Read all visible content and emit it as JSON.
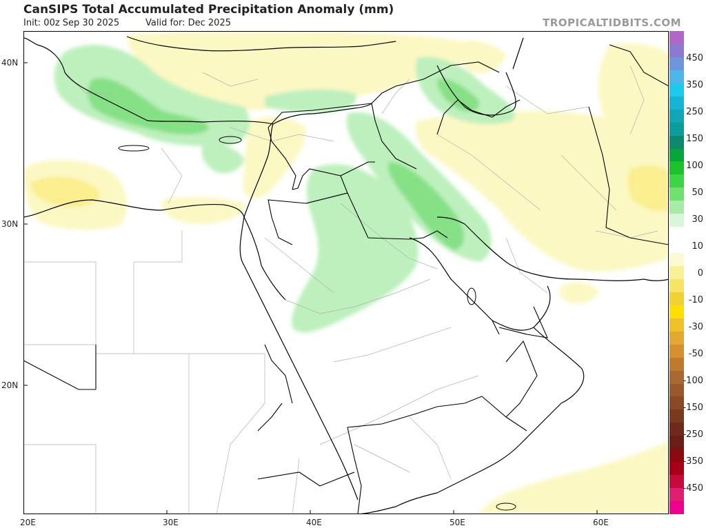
{
  "header": {
    "title": "CanSIPS Total Accumulated Precipitation Anomaly (mm)",
    "init": "Init: 00z Sep 30 2025",
    "valid": "Valid for: Dec 2025",
    "watermark": "TROPICALTIDBITS.COM"
  },
  "axes": {
    "lat_labels": [
      "40N",
      "30N",
      "20N"
    ],
    "lon_labels": [
      "20E",
      "30E",
      "40E",
      "50E",
      "60E"
    ]
  },
  "legend": {
    "labels": [
      "450",
      "350",
      "250",
      "150",
      "100",
      "50",
      "30",
      "10",
      "0",
      "-10",
      "-30",
      "-50",
      "-100",
      "-150",
      "-250",
      "-350",
      "-450"
    ],
    "colors": [
      "#b266c7",
      "#8c7ad1",
      "#6f95dc",
      "#4fb6e8",
      "#1ec9ee",
      "#15b5d4",
      "#10a6b8",
      "#0d9c9c",
      "#0b8a70",
      "#08a43c",
      "#1cc12c",
      "#3dd548",
      "#70e070",
      "#a6eca6",
      "#d8f6d8",
      "#ffffff",
      "#ffffff",
      "#fcfad2",
      "#fbf09a",
      "#f7e466",
      "#f0d232",
      "#ffde00",
      "#f0c22a",
      "#e2a832",
      "#d6902e",
      "#c07a2c",
      "#a86a32",
      "#985a2a",
      "#8a4a26",
      "#7a3a20",
      "#702a1c",
      "#6a1c16",
      "#8a0a10",
      "#a80016",
      "#c60a3e",
      "#e01e72",
      "#f00090"
    ]
  },
  "map": {
    "layer": "precipitation anomaly",
    "region": "Middle East",
    "lon_range": [
      20,
      65
    ],
    "lat_range": [
      12,
      42
    ]
  }
}
